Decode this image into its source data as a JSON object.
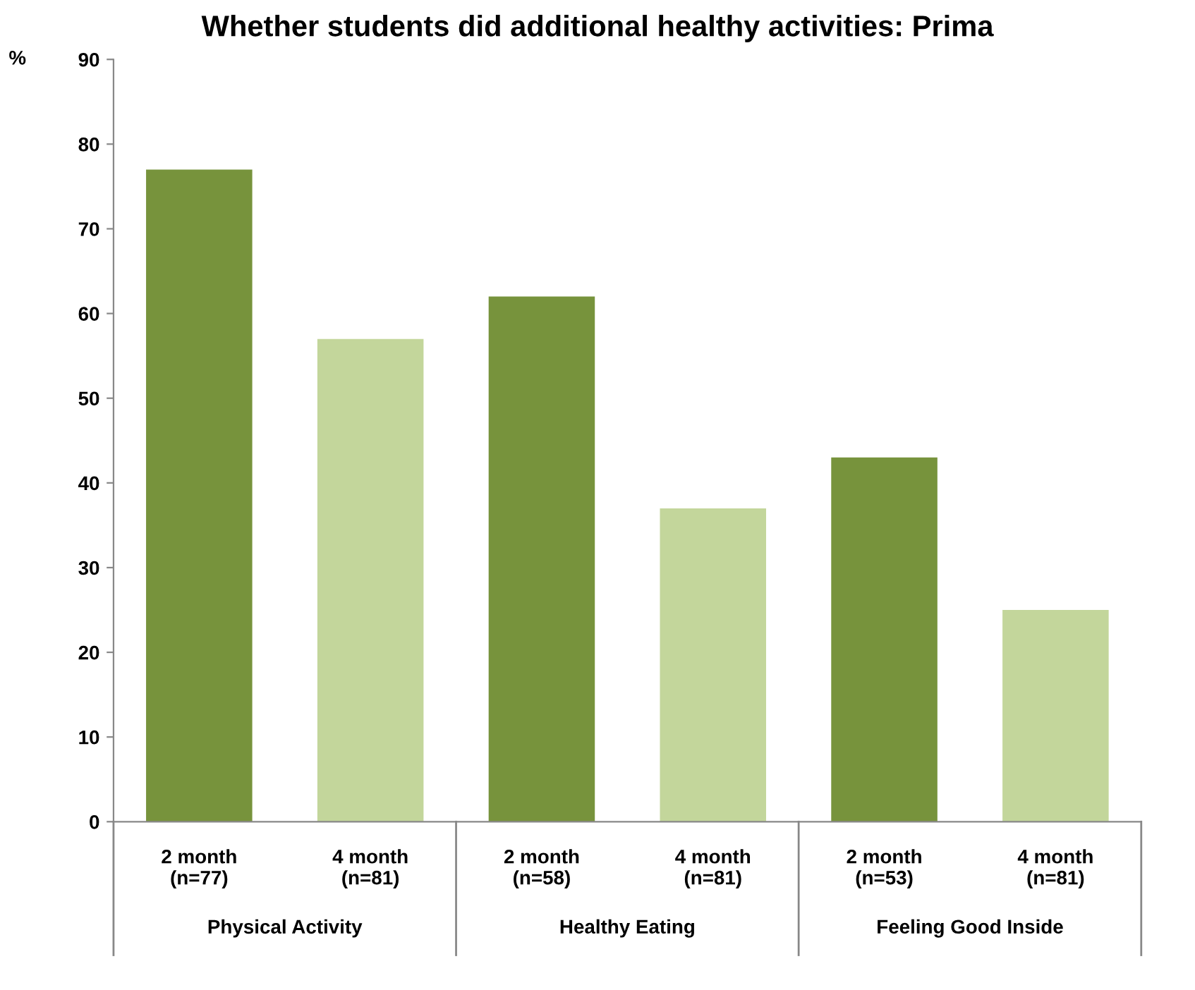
{
  "chart_data": {
    "type": "bar",
    "title": "Whether students did additional healthy activities: Prima",
    "ylabel": "%",
    "categories": [
      "2 month\n(n=77)",
      "4 month\n(n=81)",
      "2 month\n(n=58)",
      "4 month\n(n=81)",
      "2 month\n(n=53)",
      "4 month\n(n=81)"
    ],
    "values": [
      77,
      57,
      62,
      37,
      43,
      25
    ],
    "colors": [
      "#77933c",
      "#c3d69b",
      "#77933c",
      "#c3d69b",
      "#77933c",
      "#c3d69b"
    ],
    "annotations": [
      "Physical Activity",
      "Healthy Eating",
      "Feeling Good Inside"
    ],
    "ylim": [
      0,
      90
    ],
    "yticks": [
      0,
      10,
      20,
      30,
      40,
      50,
      60,
      70,
      80,
      90
    ],
    "grid": false,
    "legend": false
  }
}
